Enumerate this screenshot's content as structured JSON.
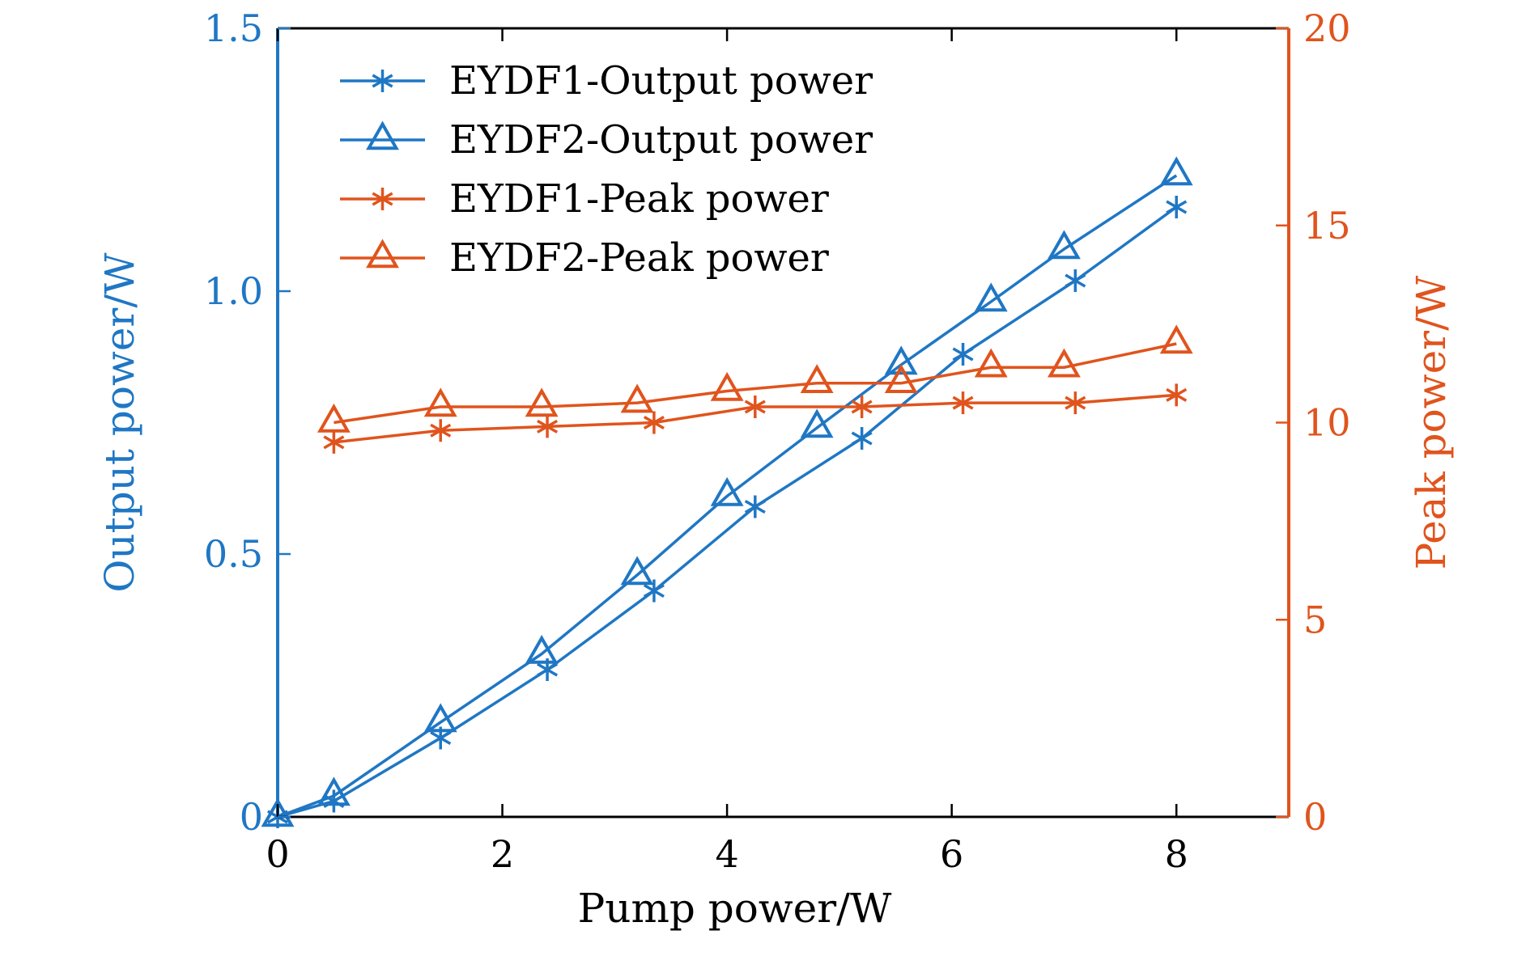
{
  "chart_data": {
    "type": "line",
    "x_axis": {
      "label": "Pump power/W",
      "range": [
        0,
        9
      ],
      "ticks": [
        0,
        2,
        4,
        6,
        8
      ]
    },
    "y_left": {
      "label": "Output power/W",
      "range": [
        0,
        1.5
      ],
      "ticks": [
        0,
        0.5,
        1.0,
        1.5
      ],
      "tick_labels": [
        "0",
        "0.5",
        "1.0",
        "1.5"
      ],
      "color": "#1f77c4"
    },
    "y_right": {
      "label": "Peak power/W",
      "range": [
        0,
        20
      ],
      "ticks": [
        0,
        5,
        10,
        15,
        20
      ],
      "tick_labels": [
        "0",
        "5",
        "10",
        "15",
        "20"
      ],
      "color": "#e0541d"
    },
    "legend_position": "top-left",
    "grid": false,
    "series": [
      {
        "name": "EYDF1-Output power",
        "axis": "left",
        "marker": "asterisk",
        "color": "#1f77c4",
        "x": [
          0,
          0.5,
          1.45,
          2.4,
          3.35,
          4.25,
          5.2,
          6.1,
          7.1,
          8.0
        ],
        "y": [
          0,
          0.03,
          0.15,
          0.28,
          0.43,
          0.59,
          0.72,
          0.88,
          1.02,
          1.16
        ]
      },
      {
        "name": "EYDF2-Output power",
        "axis": "left",
        "marker": "triangle",
        "color": "#1f77c4",
        "x": [
          0,
          0.5,
          1.45,
          2.35,
          3.2,
          4.0,
          4.8,
          5.55,
          6.35,
          7.0,
          8.0
        ],
        "y": [
          0,
          0.04,
          0.18,
          0.31,
          0.46,
          0.61,
          0.74,
          0.86,
          0.98,
          1.08,
          1.22
        ]
      },
      {
        "name": "EYDF1-Peak power",
        "axis": "right",
        "marker": "asterisk",
        "color": "#e0541d",
        "x": [
          0.5,
          1.45,
          2.4,
          3.35,
          4.25,
          5.2,
          6.1,
          7.1,
          8.0
        ],
        "y": [
          9.5,
          9.8,
          9.9,
          10.0,
          10.4,
          10.4,
          10.5,
          10.5,
          10.7
        ]
      },
      {
        "name": "EYDF2-Peak power",
        "axis": "right",
        "marker": "triangle",
        "color": "#e0541d",
        "x": [
          0.5,
          1.45,
          2.35,
          3.2,
          4.0,
          4.8,
          5.55,
          6.35,
          7.0,
          8.0
        ],
        "y": [
          10.0,
          10.4,
          10.4,
          10.5,
          10.8,
          11.0,
          11.0,
          11.4,
          11.4,
          12.0
        ]
      }
    ]
  }
}
